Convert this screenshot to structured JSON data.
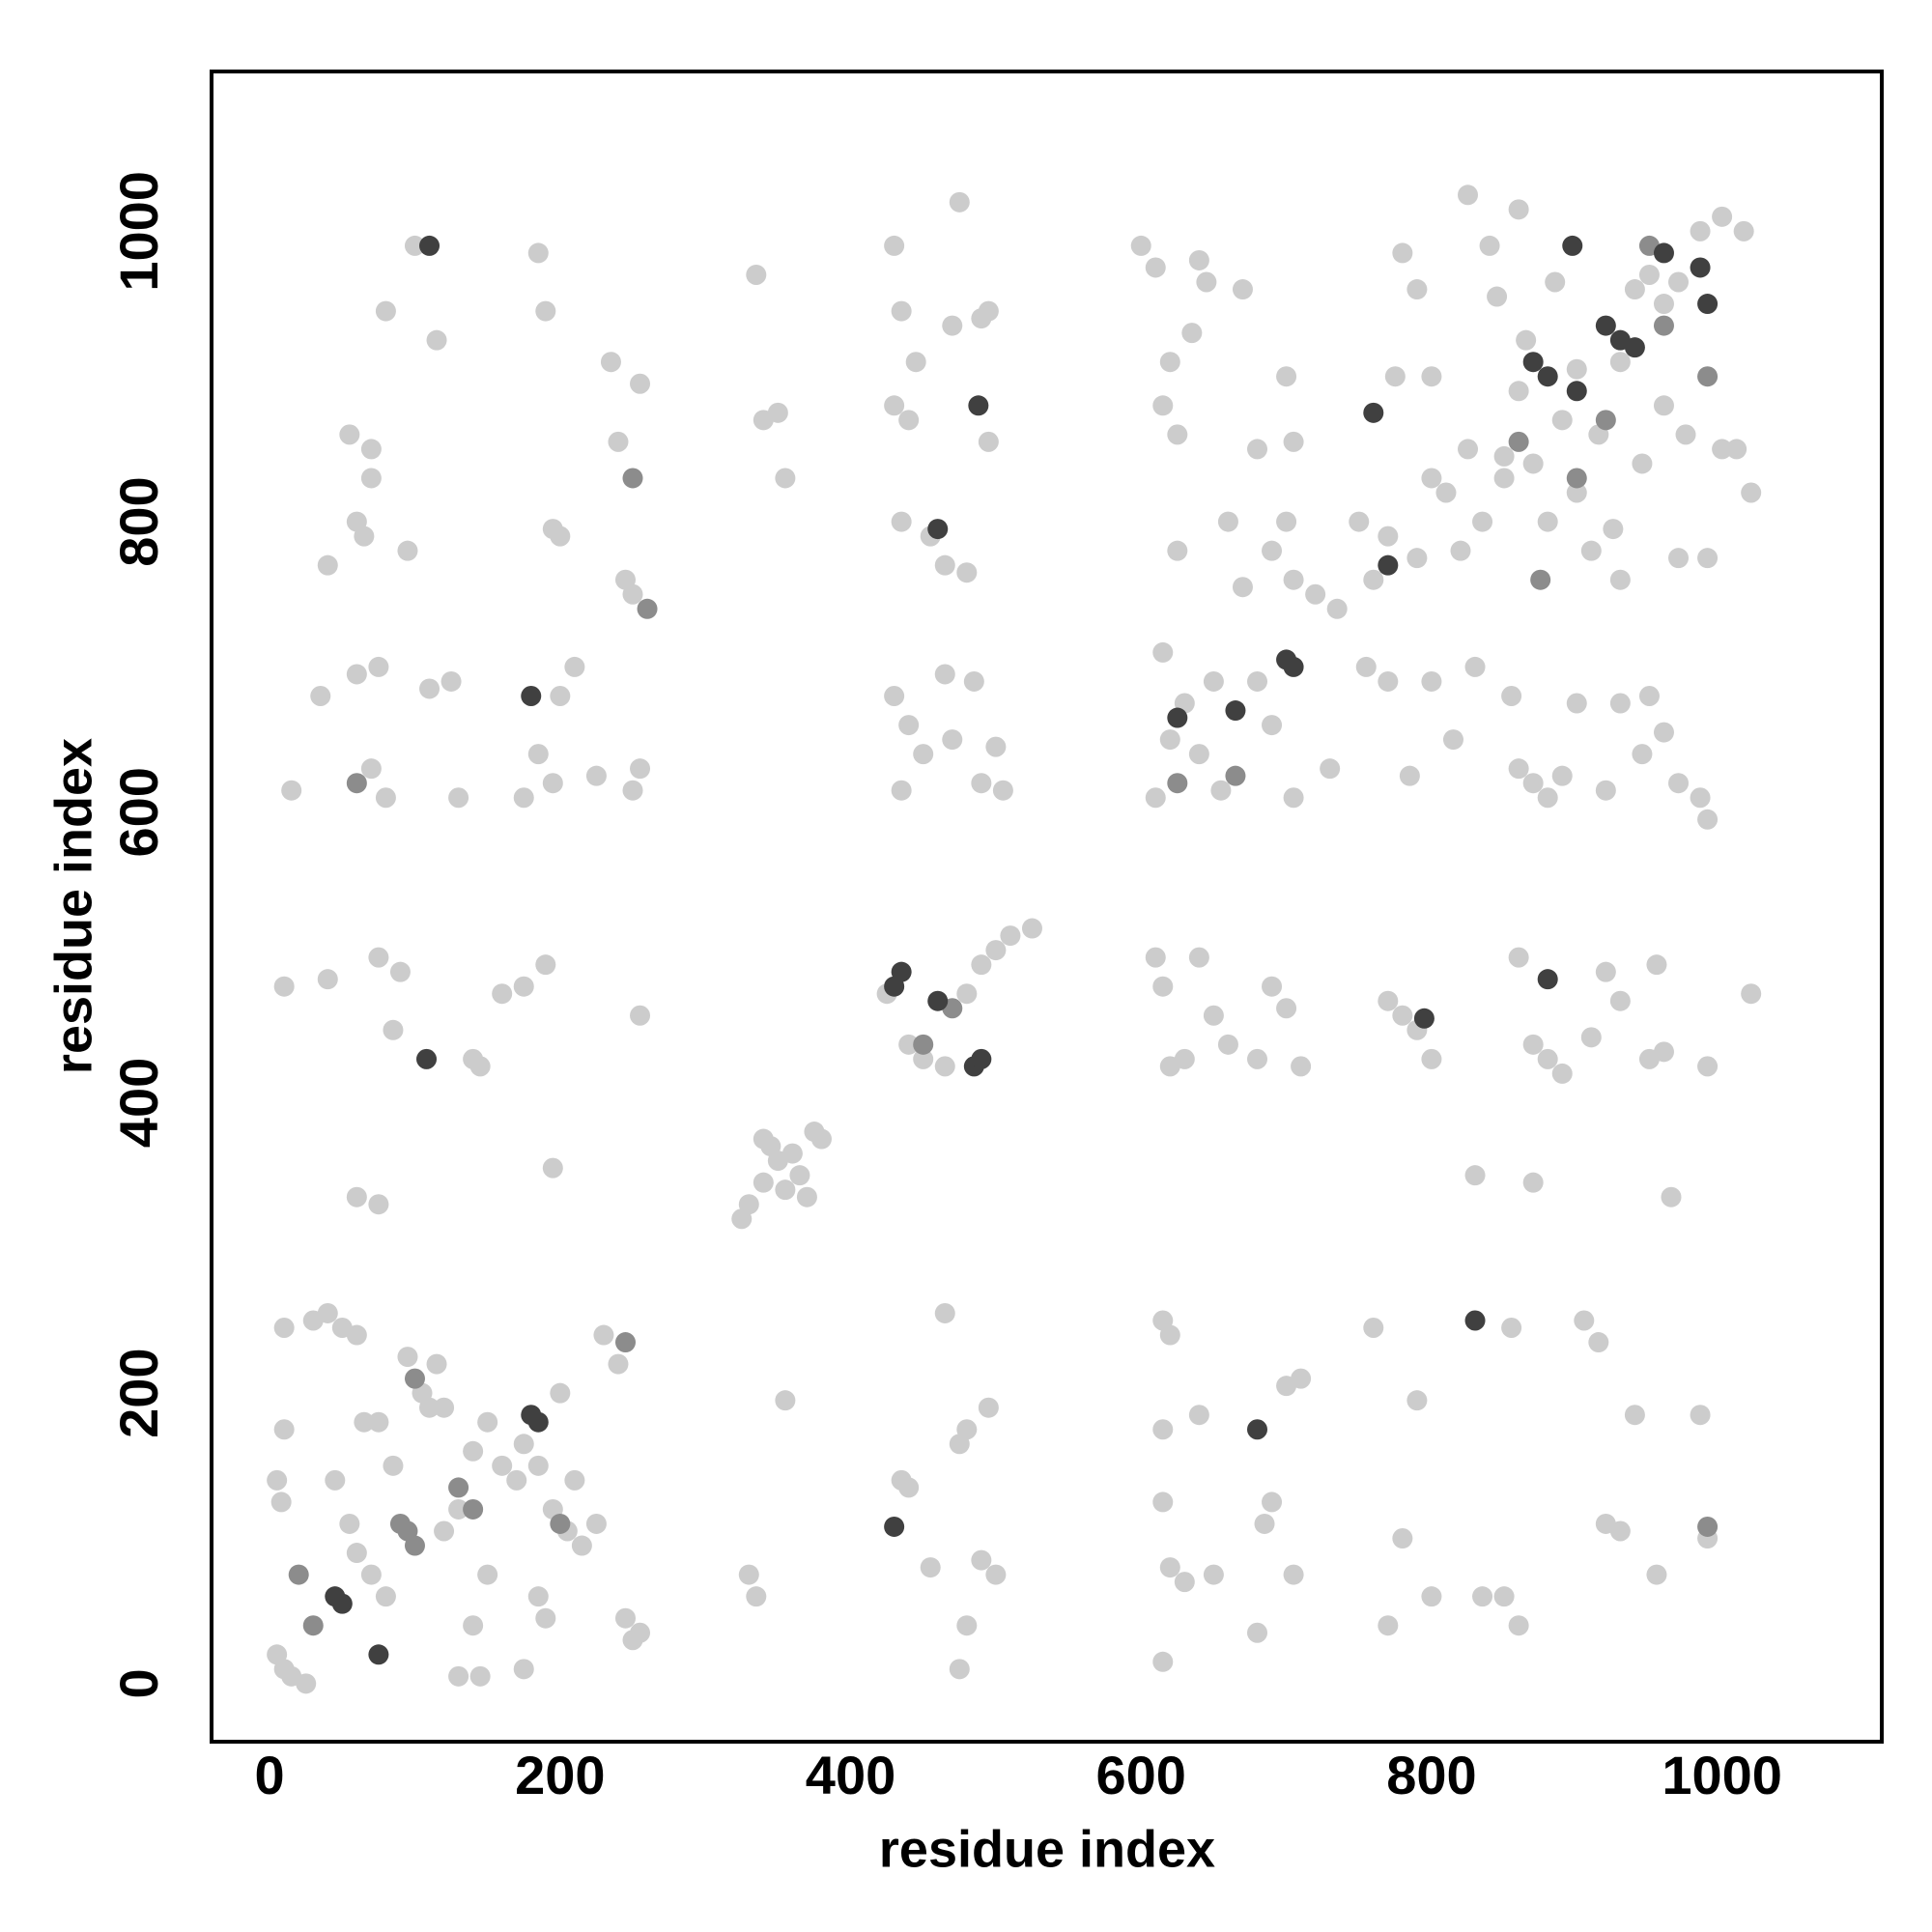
{
  "chart_data": {
    "type": "scatter",
    "xlabel": "residue index",
    "ylabel": "residue index",
    "xlim": [
      -40,
      1110
    ],
    "ylim": [
      -40,
      1110
    ],
    "xticks": [
      0,
      200,
      400,
      600,
      800,
      1000
    ],
    "yticks": [
      0,
      200,
      400,
      600,
      800,
      1000
    ],
    "series": [
      {
        "color": "#cccccc",
        "x": [
          5,
          10,
          15,
          25,
          5,
          8,
          10,
          10,
          30,
          40,
          50,
          60,
          45,
          55,
          60,
          70,
          80,
          85,
          75,
          95,
          105,
          115,
          110,
          120,
          130,
          140,
          150,
          160,
          170,
          175,
          185,
          195,
          205,
          215,
          225,
          230,
          240,
          245,
          250,
          255,
          185,
          190,
          130,
          145,
          150,
          140,
          120,
          200,
          210,
          175,
          65,
          330,
          335,
          355,
          435,
          440,
          455,
          465,
          475,
          480,
          475,
          480,
          490,
          495,
          500,
          615,
          620,
          615,
          615,
          620,
          630,
          640,
          650,
          615,
          680,
          690,
          700,
          705,
          685,
          710,
          760,
          770,
          780,
          790,
          800,
          835,
          850,
          855,
          860,
          905,
          915,
          920,
          930,
          940,
          955,
          985,
          990,
          325,
          330,
          340,
          345,
          350,
          355,
          360,
          365,
          370,
          375,
          380,
          340,
          60,
          75,
          195,
          830,
          870,
          965,
          10,
          40,
          75,
          85,
          90,
          140,
          145,
          160,
          175,
          190,
          255,
          425,
          440,
          450,
          465,
          480,
          490,
          500,
          510,
          525,
          610,
          615,
          620,
          630,
          640,
          650,
          660,
          680,
          690,
          700,
          710,
          770,
          780,
          790,
          800,
          860,
          870,
          880,
          890,
          910,
          920,
          930,
          950,
          955,
          990,
          1020,
          960,
          15,
          35,
          60,
          70,
          80,
          75,
          110,
          125,
          130,
          175,
          185,
          195,
          200,
          210,
          225,
          250,
          255,
          430,
          440,
          435,
          450,
          465,
          470,
          485,
          490,
          505,
          500,
          610,
          615,
          620,
          630,
          640,
          650,
          655,
          680,
          690,
          705,
          730,
          755,
          770,
          785,
          800,
          815,
          830,
          855,
          860,
          870,
          880,
          890,
          900,
          920,
          930,
          945,
          950,
          970,
          985,
          990,
          960,
          40,
          60,
          65,
          70,
          95,
          55,
          70,
          80,
          100,
          115,
          185,
          190,
          195,
          200,
          235,
          240,
          245,
          250,
          255,
          335,
          340,
          350,
          355,
          430,
          435,
          430,
          440,
          435,
          445,
          455,
          465,
          470,
          480,
          490,
          495,
          495,
          475,
          600,
          610,
          620,
          615,
          625,
          635,
          640,
          625,
          645,
          660,
          670,
          670,
          680,
          690,
          700,
          700,
          705,
          705,
          720,
          735,
          750,
          760,
          770,
          790,
          800,
          810,
          820,
          835,
          840,
          850,
          860,
          780,
          790,
          775,
          800,
          825,
          1000,
          1015,
          1010,
          1020,
          970,
          990,
          930,
          945,
          960,
          975,
          1000,
          960,
          970,
          940,
          950,
          985,
          900,
          890,
          860,
          850,
          870,
          880,
          900,
          910,
          885,
          915,
          930,
          865,
          845,
          825,
          925
        ],
        "values": [
          20,
          10,
          5,
          0,
          140,
          125,
          175,
          245,
          250,
          255,
          245,
          240,
          140,
          110,
          90,
          75,
          60,
          150,
          180,
          225,
          200,
          220,
          190,
          105,
          120,
          160,
          180,
          150,
          140,
          165,
          150,
          120,
          105,
          95,
          110,
          240,
          220,
          45,
          30,
          35,
          60,
          45,
          5,
          5,
          75,
          40,
          190,
          200,
          140,
          10,
          180,
          75,
          60,
          195,
          140,
          135,
          80,
          255,
          10,
          40,
          165,
          175,
          85,
          190,
          75,
          250,
          240,
          175,
          125,
          80,
          70,
          185,
          75,
          15,
          35,
          125,
          205,
          75,
          110,
          210,
          245,
          40,
          100,
          195,
          60,
          60,
          60,
          245,
          40,
          250,
          235,
          110,
          105,
          185,
          75,
          185,
          100,
          320,
          330,
          345,
          370,
          360,
          340,
          365,
          350,
          335,
          380,
          375,
          375,
          335,
          330,
          355,
          350,
          345,
          335,
          480,
          485,
          500,
          450,
          490,
          430,
          425,
          475,
          480,
          495,
          460,
          475,
          440,
          430,
          425,
          475,
          495,
          505,
          515,
          520,
          500,
          480,
          425,
          430,
          500,
          460,
          440,
          430,
          480,
          465,
          425,
          470,
          460,
          450,
          430,
          500,
          440,
          430,
          420,
          445,
          490,
          470,
          430,
          495,
          425,
          475,
          435,
          615,
          680,
          695,
          630,
          610,
          700,
          685,
          690,
          610,
          610,
          640,
          620,
          680,
          700,
          625,
          615,
          630,
          680,
          660,
          615,
          640,
          695,
          650,
          690,
          620,
          615,
          645,
          610,
          710,
          650,
          675,
          640,
          690,
          615,
          690,
          660,
          610,
          630,
          700,
          690,
          625,
          690,
          650,
          700,
          680,
          630,
          620,
          610,
          625,
          675,
          615,
          675,
          640,
          680,
          620,
          610,
          595,
          655,
          770,
          800,
          790,
          830,
          780,
          860,
          850,
          945,
          990,
          925,
          985,
          945,
          795,
          790,
          910,
          855,
          760,
          750,
          895,
          970,
          870,
          875,
          830,
          990,
          945,
          880,
          870,
          800,
          910,
          790,
          770,
          935,
          765,
          940,
          945,
          855,
          1020,
          990,
          975,
          910,
          880,
          860,
          930,
          980,
          780,
          965,
          800,
          960,
          755,
          850,
          780,
          800,
          900,
          760,
          855,
          750,
          740,
          800,
          760,
          790,
          775,
          830,
          820,
          780,
          800,
          990,
          830,
          1015,
          985,
          960,
          900,
          900,
          1025,
          1010,
          1000,
          850,
          820,
          775,
          775,
          760,
          840,
          880,
          860,
          850,
          950,
          965,
          960,
          970,
          1000,
          905,
          870,
          890,
          845,
          840,
          800,
          820,
          780,
          965,
          860,
          910,
          925,
          955,
          850,
          795
        ]
      },
      {
        "color": "#8c8c8c",
        "x": [
          90,
          95,
          100,
          20,
          30,
          130,
          140,
          250,
          245,
          60,
          665,
          625,
          900,
          990,
          875,
          990,
          450,
          470,
          920,
          860,
          950,
          960,
          100,
          200,
          260
        ],
        "values": [
          110,
          105,
          95,
          75,
          40,
          135,
          120,
          830,
          235,
          620,
          625,
          620,
          830,
          900,
          760,
          108,
          440,
          465,
          870,
          855,
          990,
          935,
          210,
          110,
          740
        ]
      },
      {
        "color": "#404040",
        "x": [
          108,
          180,
          185,
          50,
          45,
          75,
          430,
          435,
          485,
          490,
          460,
          625,
          665,
          700,
          705,
          870,
          880,
          900,
          920,
          930,
          940,
          960,
          985,
          990,
          770,
          880,
          795,
          830,
          680,
          430,
          488,
          460,
          897,
          760,
          180,
          110
        ],
        "values": [
          430,
          185,
          180,
          55,
          60,
          20,
          480,
          490,
          425,
          430,
          470,
          665,
          670,
          705,
          700,
          910,
          900,
          890,
          935,
          925,
          920,
          985,
          975,
          950,
          770,
          485,
          458,
          250,
          175,
          108,
          880,
          795,
          990,
          875,
          680,
          990
        ]
      }
    ]
  }
}
